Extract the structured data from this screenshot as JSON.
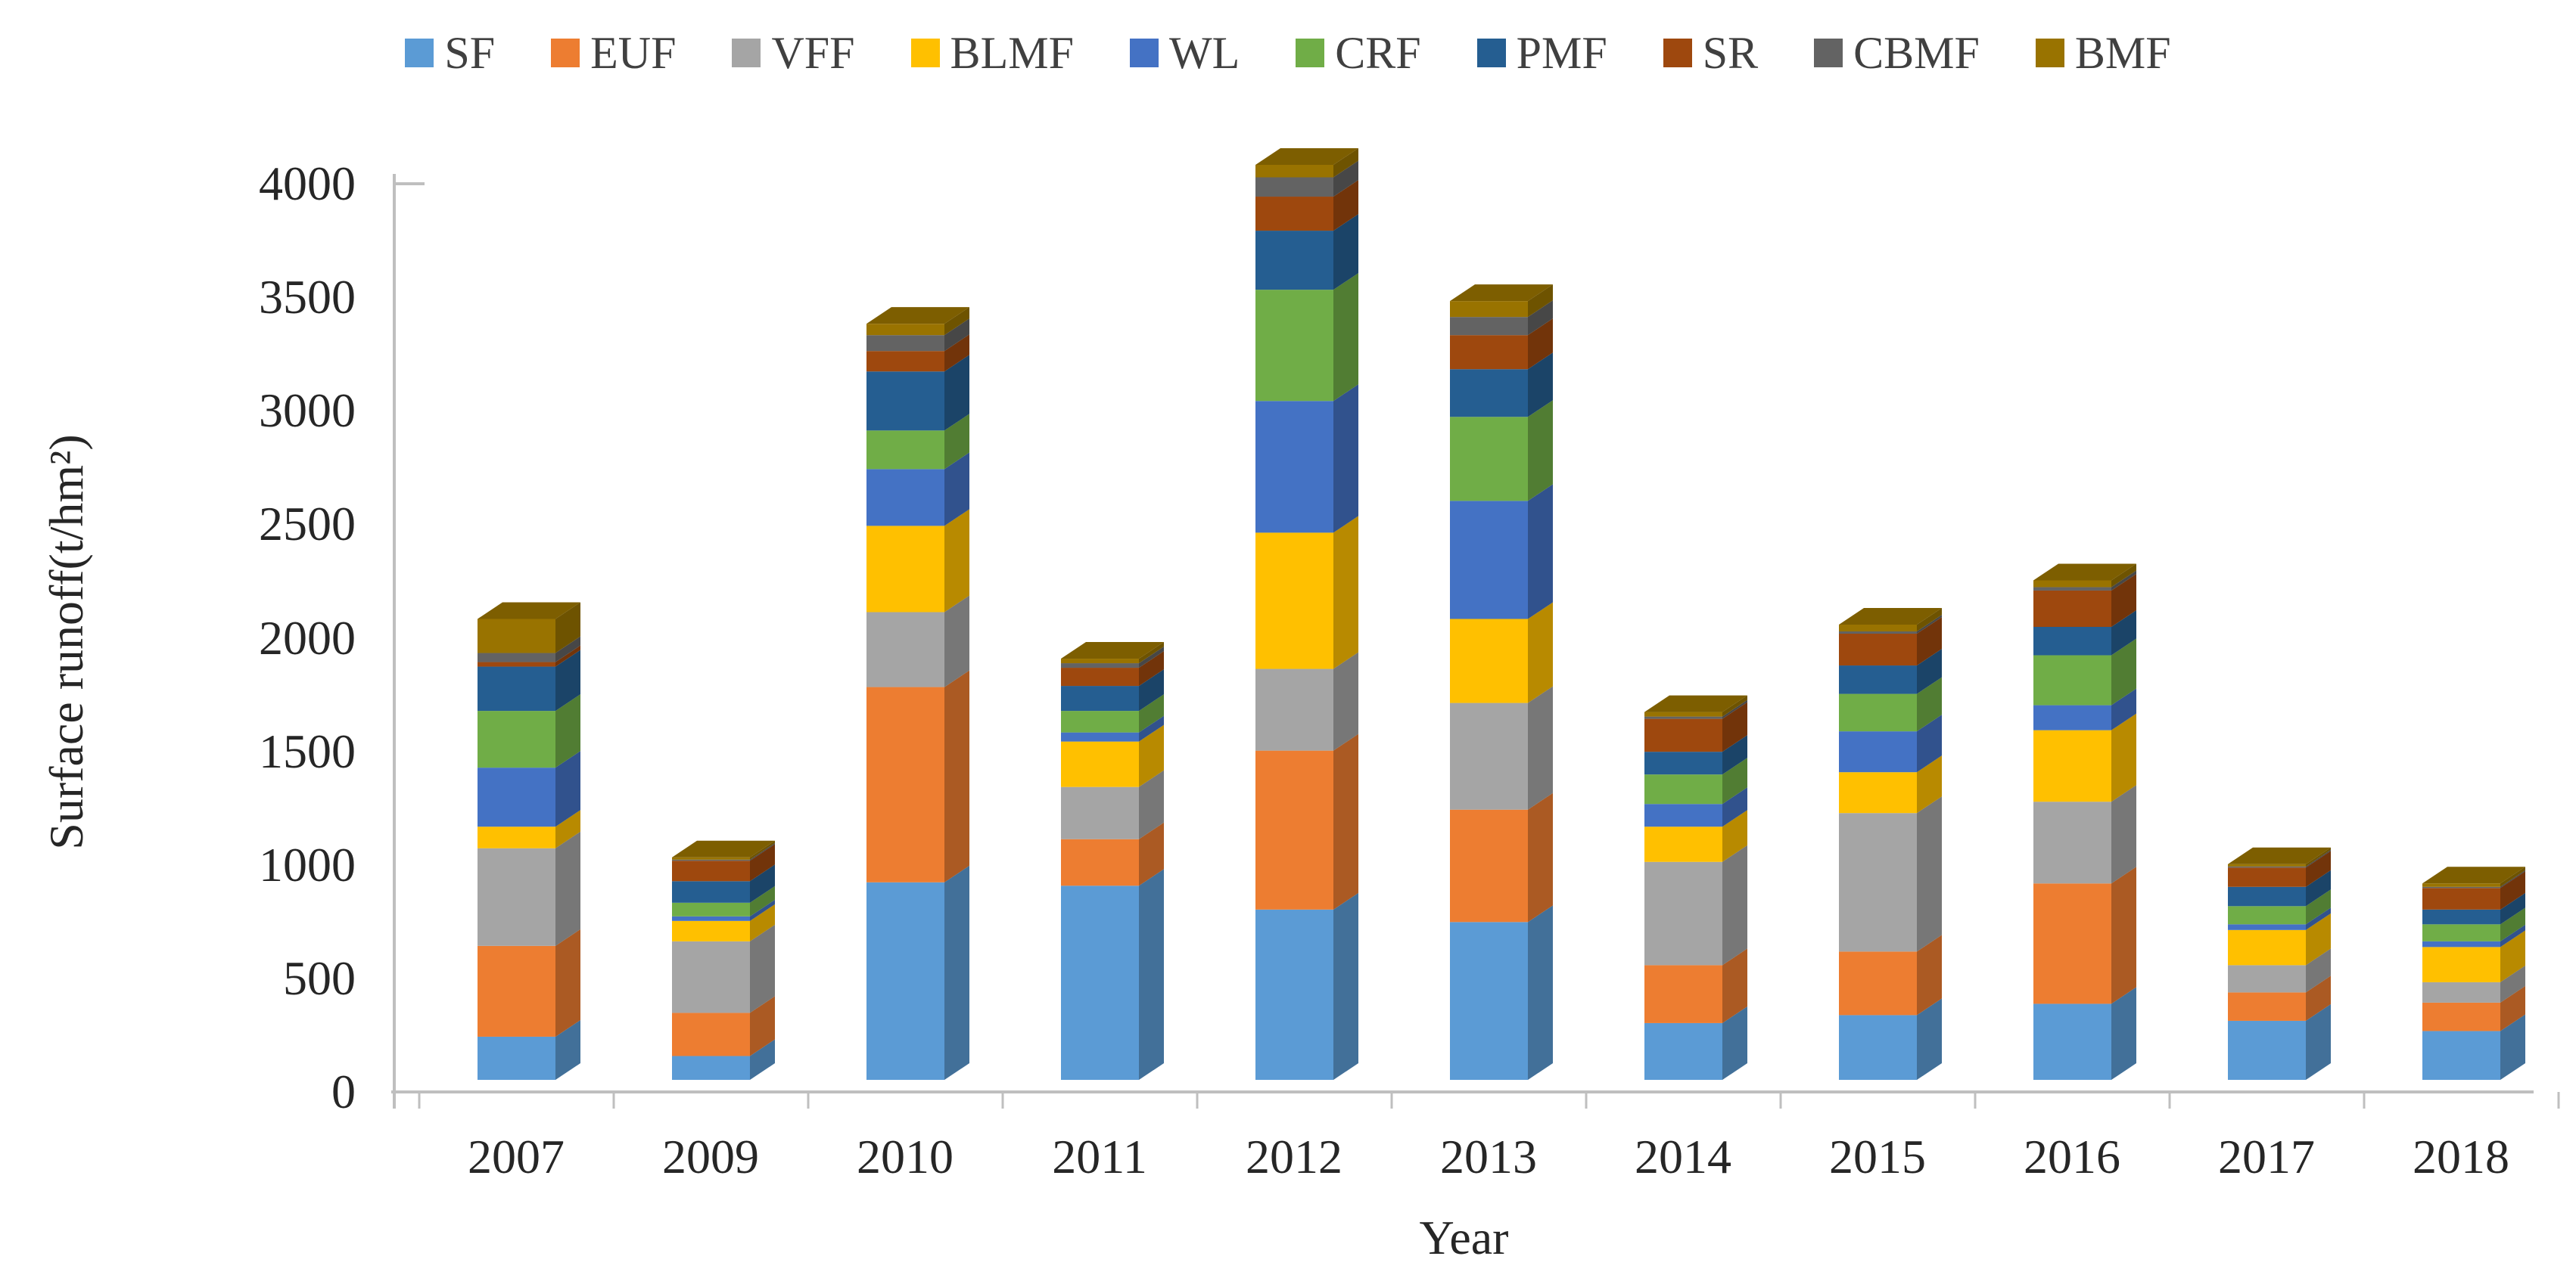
{
  "chart_data": {
    "type": "bar",
    "stacked": true,
    "effect": "3d-extrusion",
    "title": "",
    "xlabel": "Year",
    "ylabel": "Surface runoff(t/hm²)",
    "categories": [
      "2007",
      "2009",
      "2010",
      "2011",
      "2012",
      "2013",
      "2014",
      "2015",
      "2016",
      "2017",
      "2018"
    ],
    "series": [
      {
        "name": "SF",
        "color": "#5B9BD5",
        "values": [
          190,
          105,
          870,
          855,
          750,
          695,
          250,
          285,
          335,
          260,
          215
        ]
      },
      {
        "name": "EUF",
        "color": "#ED7D31",
        "values": [
          400,
          190,
          860,
          205,
          700,
          495,
          255,
          280,
          530,
          125,
          125
        ]
      },
      {
        "name": "VFF",
        "color": "#A5A5A5",
        "values": [
          430,
          315,
          330,
          230,
          360,
          470,
          455,
          610,
          360,
          120,
          90
        ]
      },
      {
        "name": "BLMF",
        "color": "#FFC000",
        "values": [
          95,
          90,
          380,
          200,
          600,
          370,
          155,
          180,
          315,
          155,
          155
        ]
      },
      {
        "name": "WL",
        "color": "#4472C4",
        "values": [
          260,
          20,
          250,
          40,
          580,
          520,
          100,
          180,
          110,
          25,
          25
        ]
      },
      {
        "name": "CRF",
        "color": "#70AD47",
        "values": [
          250,
          60,
          170,
          95,
          490,
          370,
          130,
          165,
          220,
          80,
          75
        ]
      },
      {
        "name": "PMF",
        "color": "#255E91",
        "values": [
          195,
          95,
          260,
          110,
          260,
          210,
          100,
          125,
          125,
          85,
          65
        ]
      },
      {
        "name": "SR",
        "color": "#9E480E",
        "values": [
          20,
          90,
          90,
          80,
          150,
          150,
          145,
          140,
          160,
          85,
          95
        ]
      },
      {
        "name": "CBMF",
        "color": "#636363",
        "values": [
          40,
          5,
          70,
          20,
          85,
          80,
          10,
          10,
          15,
          5,
          5
        ]
      },
      {
        "name": "BMF",
        "color": "#997300",
        "values": [
          150,
          10,
          50,
          20,
          55,
          70,
          20,
          30,
          30,
          10,
          15
        ]
      }
    ],
    "totals": [
      2030,
      980,
      3330,
      1855,
      4030,
      3430,
      1620,
      2005,
      2200,
      950,
      865
    ],
    "ylim": [
      0,
      4000
    ],
    "ytick_step": 500,
    "yticks": [
      "0",
      "500",
      "1000",
      "1500",
      "2000",
      "2500",
      "3000",
      "3500",
      "4000"
    ],
    "legend_position": "top",
    "grid": false
  },
  "axis": {
    "line_color": "#BFBFBF",
    "text_color": "#262626",
    "legend_text_color": "#404040"
  }
}
